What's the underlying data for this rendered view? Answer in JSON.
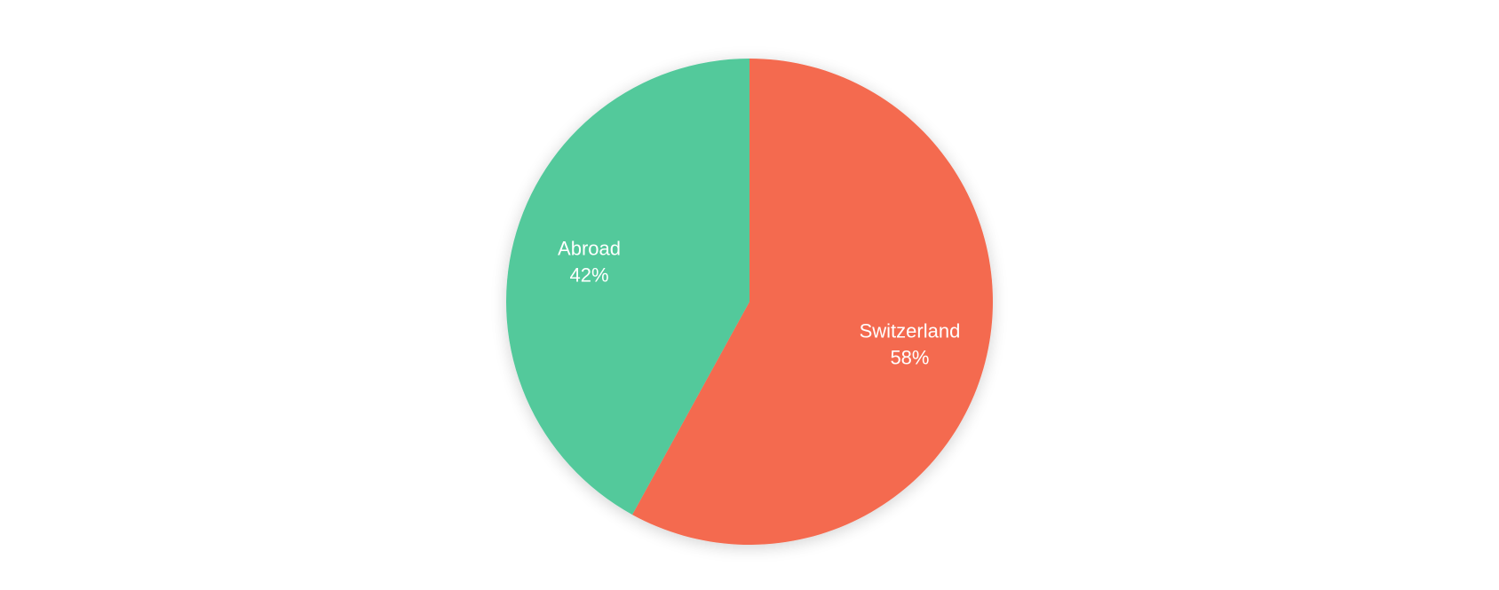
{
  "chart_data": {
    "type": "pie",
    "title": "",
    "start_angle_deg": 0,
    "direction": "clockwise",
    "slices": [
      {
        "label": "Switzerland",
        "value": 58,
        "value_label": "58%",
        "color": "#F46B4F"
      },
      {
        "label": "Abroad",
        "value": 42,
        "value_label": "42%",
        "color": "#52C99B"
      }
    ]
  }
}
